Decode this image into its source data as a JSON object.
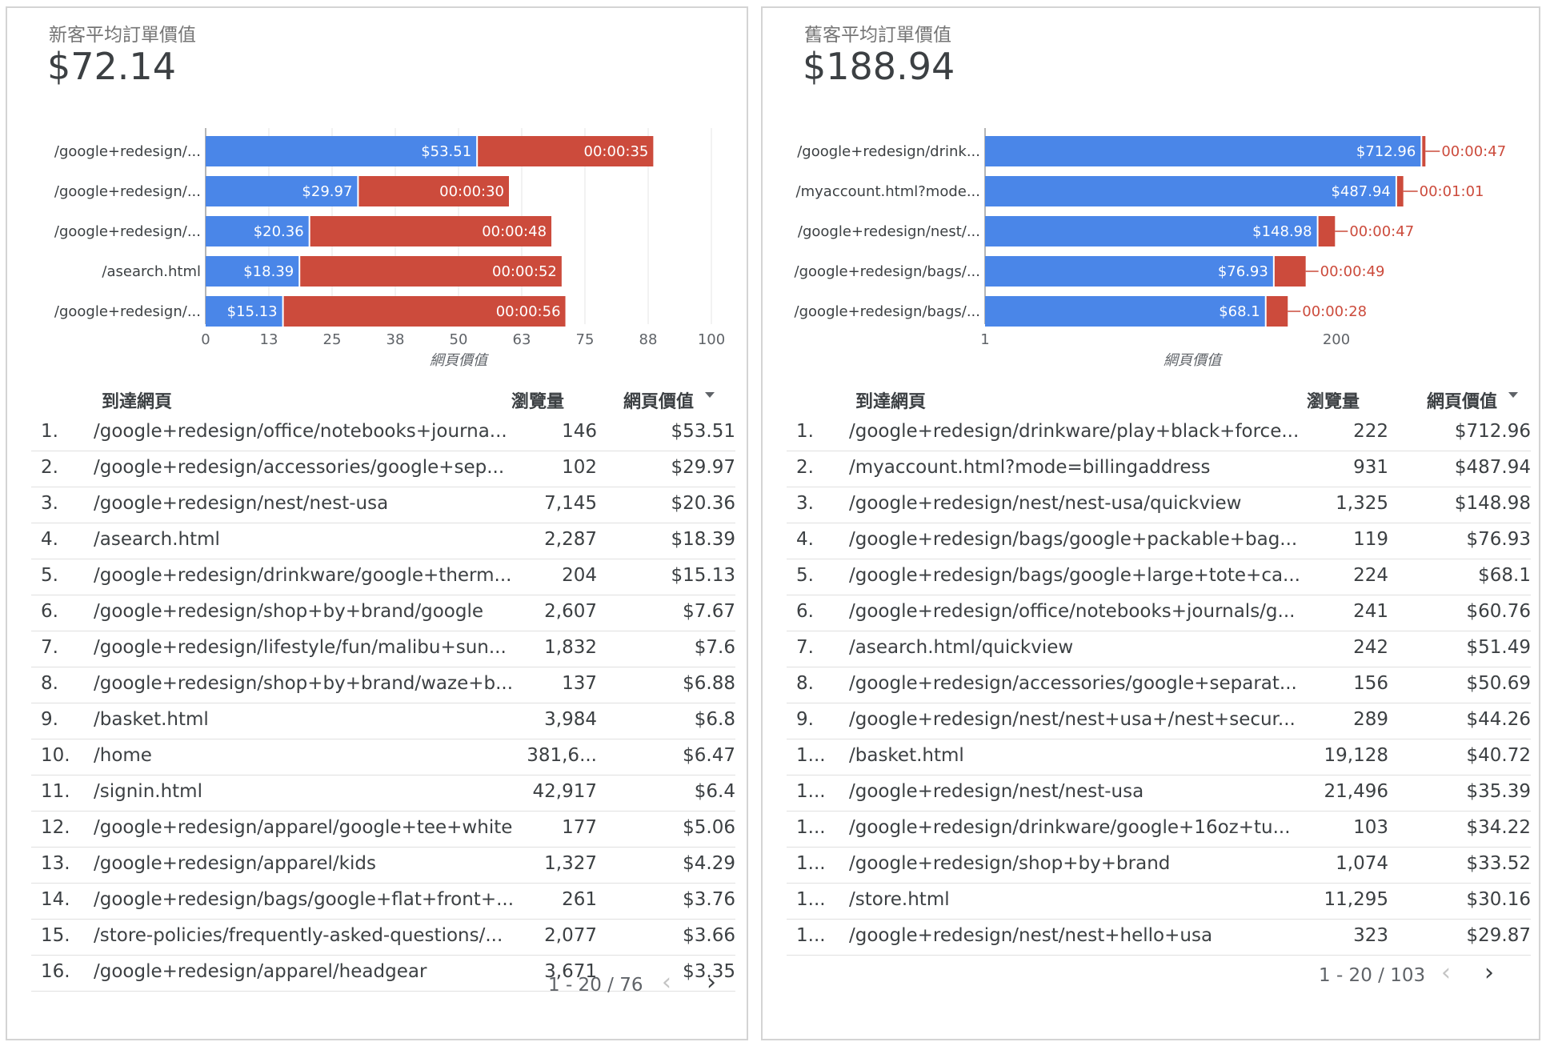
{
  "left": {
    "kpi_label": "新客平均訂單價值",
    "kpi_value": "$72.14",
    "chart_data": {
      "type": "bar",
      "orientation": "horizontal-stacked",
      "categories": [
        "/google+redesign/...",
        "/google+redesign/...",
        "/google+redesign/...",
        "/asearch.html",
        "/google+redesign/..."
      ],
      "series": [
        {
          "values": [
            53.51,
            29.97,
            20.36,
            18.39,
            15.13
          ],
          "labels": [
            "$53.51",
            "$29.97",
            "$20.36",
            "$18.39",
            "$15.13"
          ],
          "color": "#4a86e8"
        },
        {
          "values": [
            35,
            30,
            48,
            52,
            56
          ],
          "labels": [
            "00:00:35",
            "00:00:30",
            "00:00:48",
            "00:00:52",
            "00:00:56"
          ],
          "color": "#cc4b3c"
        }
      ],
      "xticks": [
        "0",
        "13",
        "25",
        "38",
        "50",
        "63",
        "75",
        "88",
        "100"
      ],
      "xlim": [
        0,
        100
      ],
      "xlabel": "網頁價值",
      "grid": true
    },
    "table": {
      "headers": {
        "page": "到達網頁",
        "views": "瀏覽量",
        "value": "網頁價值"
      },
      "rows": [
        {
          "idx": "1.",
          "page": "/google+redesign/office/notebooks+journa...",
          "views": "146",
          "value": "$53.51"
        },
        {
          "idx": "2.",
          "page": "/google+redesign/accessories/google+sep...",
          "views": "102",
          "value": "$29.97"
        },
        {
          "idx": "3.",
          "page": "/google+redesign/nest/nest-usa",
          "views": "7,145",
          "value": "$20.36"
        },
        {
          "idx": "4.",
          "page": "/asearch.html",
          "views": "2,287",
          "value": "$18.39"
        },
        {
          "idx": "5.",
          "page": "/google+redesign/drinkware/google+therm...",
          "views": "204",
          "value": "$15.13"
        },
        {
          "idx": "6.",
          "page": "/google+redesign/shop+by+brand/google",
          "views": "2,607",
          "value": "$7.67"
        },
        {
          "idx": "7.",
          "page": "/google+redesign/lifestyle/fun/malibu+sun...",
          "views": "1,832",
          "value": "$7.6"
        },
        {
          "idx": "8.",
          "page": "/google+redesign/shop+by+brand/waze+b...",
          "views": "137",
          "value": "$6.88"
        },
        {
          "idx": "9.",
          "page": "/basket.html",
          "views": "3,984",
          "value": "$6.8"
        },
        {
          "idx": "10.",
          "page": "/home",
          "views": "381,6...",
          "value": "$6.47"
        },
        {
          "idx": "11.",
          "page": "/signin.html",
          "views": "42,917",
          "value": "$6.4"
        },
        {
          "idx": "12.",
          "page": "/google+redesign/apparel/google+tee+white",
          "views": "177",
          "value": "$5.06"
        },
        {
          "idx": "13.",
          "page": "/google+redesign/apparel/kids",
          "views": "1,327",
          "value": "$4.29"
        },
        {
          "idx": "14.",
          "page": "/google+redesign/bags/google+flat+front+...",
          "views": "261",
          "value": "$3.76"
        },
        {
          "idx": "15.",
          "page": "/store-policies/frequently-asked-questions/...",
          "views": "2,077",
          "value": "$3.66"
        },
        {
          "idx": "16.",
          "page": "/google+redesign/apparel/headgear",
          "views": "3,671",
          "value": "$3.35"
        }
      ]
    },
    "pager": "1 - 20 / 76"
  },
  "right": {
    "kpi_label": "舊客平均訂單價值",
    "kpi_value": "$188.94",
    "chart_data": {
      "type": "bar",
      "orientation": "horizontal-stacked",
      "x_scale": "log",
      "categories": [
        "/google+redesign/drink...",
        "/myaccount.html?mode...",
        "/google+redesign/nest/...",
        "/google+redesign/bags/...",
        "/google+redesign/bags/..."
      ],
      "series": [
        {
          "values": [
            712.96,
            487.94,
            148.98,
            76.93,
            68.1
          ],
          "labels": [
            "$712.96",
            "$487.94",
            "$148.98",
            "$76.93",
            "$68.1"
          ],
          "color": "#4a86e8"
        },
        {
          "values": [
            47,
            61,
            47,
            49,
            28
          ],
          "labels": [
            "00:00:47",
            "00:01:01",
            "00:00:47",
            "00:00:49",
            "00:00:28"
          ],
          "color": "#cc4b3c"
        }
      ],
      "xticks": [
        "1",
        "200"
      ],
      "xlabel": "網頁價值",
      "grid": false
    },
    "table": {
      "headers": {
        "page": "到達網頁",
        "views": "瀏覽量",
        "value": "網頁價值"
      },
      "rows": [
        {
          "idx": "1.",
          "page": "/google+redesign/drinkware/play+black+force...",
          "views": "222",
          "value": "$712.96"
        },
        {
          "idx": "2.",
          "page": "/myaccount.html?mode=billingaddress",
          "views": "931",
          "value": "$487.94"
        },
        {
          "idx": "3.",
          "page": "/google+redesign/nest/nest-usa/quickview",
          "views": "1,325",
          "value": "$148.98"
        },
        {
          "idx": "4.",
          "page": "/google+redesign/bags/google+packable+bag...",
          "views": "119",
          "value": "$76.93"
        },
        {
          "idx": "5.",
          "page": "/google+redesign/bags/google+large+tote+ca...",
          "views": "224",
          "value": "$68.1"
        },
        {
          "idx": "6.",
          "page": "/google+redesign/office/notebooks+journals/g...",
          "views": "241",
          "value": "$60.76"
        },
        {
          "idx": "7.",
          "page": "/asearch.html/quickview",
          "views": "242",
          "value": "$51.49"
        },
        {
          "idx": "8.",
          "page": "/google+redesign/accessories/google+separat...",
          "views": "156",
          "value": "$50.69"
        },
        {
          "idx": "9.",
          "page": "/google+redesign/nest/nest+usa+/nest+secur...",
          "views": "289",
          "value": "$44.26"
        },
        {
          "idx": "1...",
          "page": "/basket.html",
          "views": "19,128",
          "value": "$40.72"
        },
        {
          "idx": "1...",
          "page": "/google+redesign/nest/nest-usa",
          "views": "21,496",
          "value": "$35.39"
        },
        {
          "idx": "1...",
          "page": "/google+redesign/drinkware/google+16oz+tu...",
          "views": "103",
          "value": "$34.22"
        },
        {
          "idx": "1...",
          "page": "/google+redesign/shop+by+brand",
          "views": "1,074",
          "value": "$33.52"
        },
        {
          "idx": "1...",
          "page": "/store.html",
          "views": "11,295",
          "value": "$30.16"
        },
        {
          "idx": "1...",
          "page": "/google+redesign/nest/nest+hello+usa",
          "views": "323",
          "value": "$29.87"
        }
      ]
    },
    "pager": "1 - 20 / 103"
  }
}
